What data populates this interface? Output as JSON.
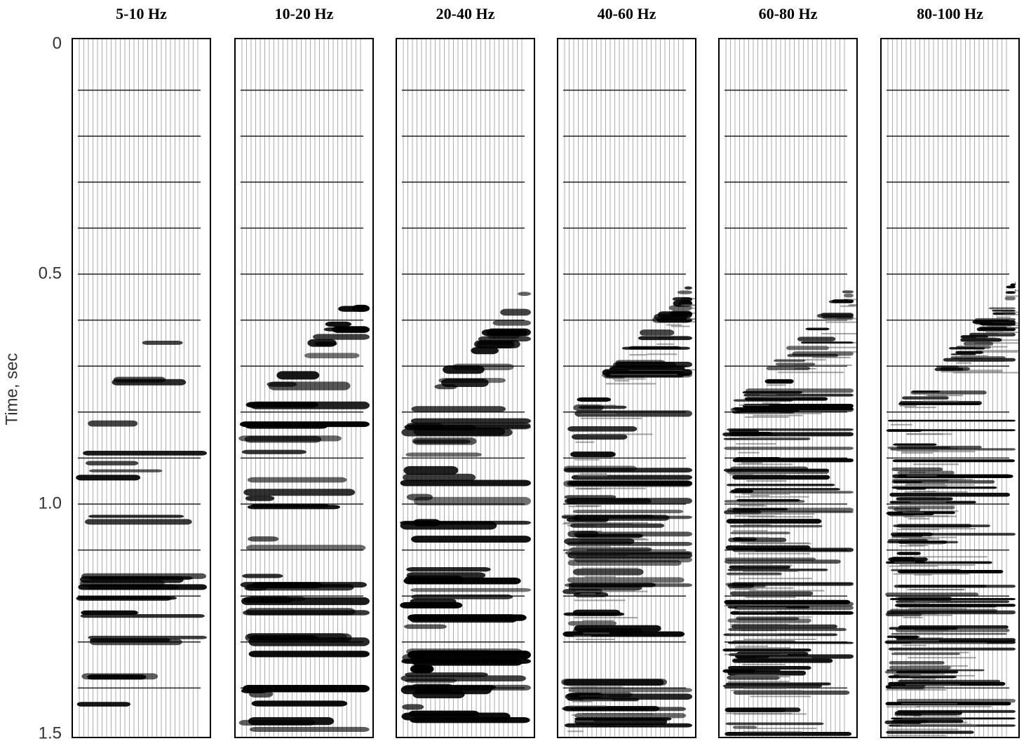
{
  "chart_data": {
    "type": "seismic",
    "panels": [
      "5-10 Hz",
      "10-20 Hz",
      "20-40 Hz",
      "40-60 Hz",
      "60-80 Hz",
      "80-100 Hz"
    ],
    "y_label": "Time, sec",
    "ylim": [
      0,
      1.5
    ],
    "yticks": [
      0,
      0.5,
      {
        "value": 1,
        "label": "1.0"
      },
      1.5
    ],
    "timing_lines": [
      0.1,
      0.2,
      0.3,
      0.4,
      0.5,
      0.6,
      0.7,
      0.8,
      0.9,
      1,
      1.1,
      1.2,
      1.3,
      1.4
    ],
    "color": "#000000"
  }
}
